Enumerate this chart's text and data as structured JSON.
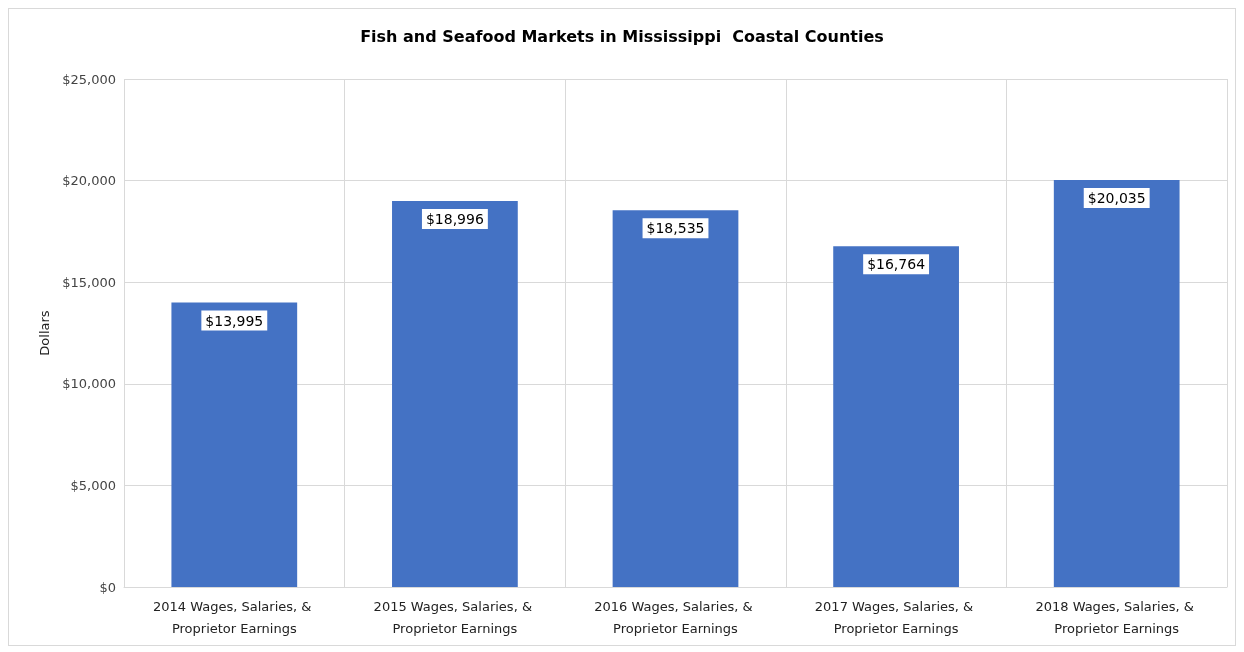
{
  "chart_data": {
    "type": "bar",
    "title": "Fish and Seafood Markets in Mississippi  Coastal Counties",
    "ylabel": "Dollars",
    "categories": [
      "2014 Wages, Salaries, & Proprietor Earnings",
      "2015 Wages, Salaries, & Proprietor Earnings",
      "2016 Wages, Salaries, & Proprietor Earnings",
      "2017 Wages, Salaries, & Proprietor Earnings",
      "2018 Wages, Salaries, & Proprietor Earnings"
    ],
    "values": [
      13995,
      18996,
      18535,
      16764,
      20035
    ],
    "value_labels": [
      "$13,995",
      "$18,996",
      "$18,535",
      "$16,764",
      "$20,035"
    ],
    "color": "#4472c4",
    "ylim": [
      0,
      25000
    ],
    "yticks": [
      {
        "value": 0,
        "label": "$0"
      },
      {
        "value": 5000,
        "label": "$5,000"
      },
      {
        "value": 10000,
        "label": "$10,000"
      },
      {
        "value": 15000,
        "label": "$15,000"
      },
      {
        "value": 20000,
        "label": "$20,000"
      },
      {
        "value": 25000,
        "label": "$25,000"
      }
    ],
    "grid": true
  }
}
